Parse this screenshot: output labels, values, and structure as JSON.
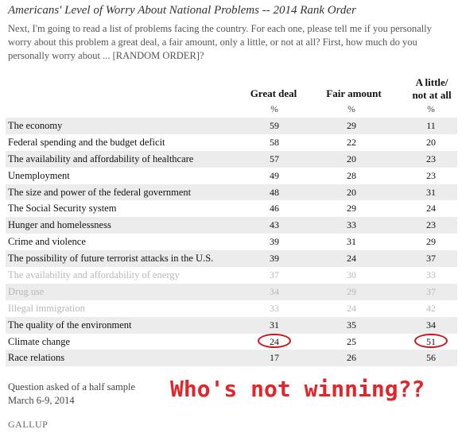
{
  "chart_data": {
    "type": "table",
    "title": "Americans' Level of Worry About National Problems -- 2014 Rank Order",
    "subtitle": "Next, I'm going to read a list of problems facing the country. For each one, please tell me if you personally worry about this problem a great deal, a fair amount, only a little, or not at all? First, how much do you personally worry about ... [RANDOM ORDER]?",
    "columns": [
      "Great deal",
      "Fair amount",
      "A little/\nnot at all"
    ],
    "unit_row": [
      "%",
      "%",
      "%"
    ],
    "rows": [
      {
        "label": "The economy",
        "values": [
          "59",
          "29",
          "11"
        ],
        "faded": false
      },
      {
        "label": "Federal spending and the budget deficit",
        "values": [
          "58",
          "22",
          "20"
        ],
        "faded": false
      },
      {
        "label": "The availability and affordability of healthcare",
        "values": [
          "57",
          "20",
          "23"
        ],
        "faded": false
      },
      {
        "label": "Unemployment",
        "values": [
          "49",
          "28",
          "23"
        ],
        "faded": false
      },
      {
        "label": "The size and power of the federal government",
        "values": [
          "48",
          "20",
          "31"
        ],
        "faded": false
      },
      {
        "label": "The Social Security system",
        "values": [
          "46",
          "29",
          "24"
        ],
        "faded": false
      },
      {
        "label": "Hunger and homelessness",
        "values": [
          "43",
          "33",
          "23"
        ],
        "faded": false
      },
      {
        "label": "Crime and violence",
        "values": [
          "39",
          "31",
          "29"
        ],
        "faded": false
      },
      {
        "label": "The possibility of future terrorist attacks in the U.S.",
        "values": [
          "39",
          "24",
          "37"
        ],
        "faded": false
      },
      {
        "label": "The availability and affordability of energy",
        "values": [
          "37",
          "30",
          "33"
        ],
        "faded": true
      },
      {
        "label": "Drug use",
        "values": [
          "34",
          "29",
          "37"
        ],
        "faded": true
      },
      {
        "label": "Illegal immigration",
        "values": [
          "33",
          "24",
          "42"
        ],
        "faded": true
      },
      {
        "label": "The quality of the environment",
        "values": [
          "31",
          "35",
          "34"
        ],
        "faded": false
      },
      {
        "label": "Climate change",
        "values": [
          "24",
          "25",
          "51"
        ],
        "faded": false,
        "circled": [
          0,
          2
        ]
      },
      {
        "label": "Race relations",
        "values": [
          "17",
          "26",
          "56"
        ],
        "faded": false
      }
    ],
    "footnote": [
      "Question asked of a half sample",
      "March 6-9, 2014"
    ],
    "source": "GALLUP",
    "annotation": "Who's not winning??",
    "colors": {
      "shade": "#ececec",
      "faded_text": "#b8b8b8",
      "annotation": "#e3242b"
    }
  }
}
